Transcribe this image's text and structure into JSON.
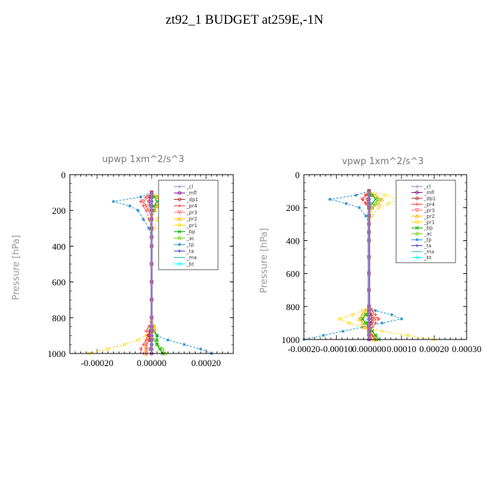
{
  "page_title": "zt92_1  BUDGET at259E,-1N",
  "chart_data": [
    {
      "type": "line",
      "title": "upwp   1xm^2/s^3",
      "xlabel": "",
      "ylabel": "Pressure [hPa]",
      "xlim": [
        -0.0003,
        0.0003
      ],
      "ylim": [
        1000,
        0
      ],
      "xticks": [
        -0.0002,
        0.0,
        0.0002
      ],
      "xtick_labels": [
        "-0.00020",
        "0.00000",
        "0.00020"
      ],
      "yticks": [
        0,
        200,
        400,
        600,
        800,
        1000
      ],
      "ytick_labels": [
        "0",
        "200",
        "400",
        "600",
        "800",
        "1000"
      ],
      "legend_position": "top-right",
      "y": [
        100,
        125,
        150,
        175,
        200,
        250,
        300,
        350,
        400,
        500,
        600,
        700,
        800,
        850,
        875,
        900,
        925,
        950,
        975,
        1000
      ],
      "series": [
        {
          "name": "_cl",
          "color": "#8e7cc3",
          "marker": "+",
          "x": [
            0,
            0,
            0,
            0,
            0,
            0,
            0,
            0,
            0,
            0,
            0,
            0,
            0,
            0,
            0,
            0,
            0,
            0,
            0,
            0
          ]
        },
        {
          "name": "_mfl",
          "color": "#800080",
          "marker": "o",
          "x": [
            0,
            0,
            0,
            0,
            0,
            0,
            0,
            0,
            0,
            0,
            0,
            0,
            0,
            0,
            0,
            0,
            0,
            0,
            0,
            0
          ]
        },
        {
          "name": "_dp1",
          "color": "#b22222",
          "marker": "o",
          "x": [
            0,
            -5e-06,
            -1e-05,
            -5e-06,
            0,
            0,
            0,
            0,
            0,
            0,
            0,
            0,
            0,
            0,
            -5e-06,
            -1e-05,
            -5e-06,
            0,
            -5e-06,
            0
          ]
        },
        {
          "name": "_pr4",
          "color": "#ff3333",
          "marker": "+",
          "x": [
            0,
            -2e-05,
            -4e-05,
            -3e-05,
            -2e-05,
            -1e-05,
            0,
            0,
            0,
            0,
            0,
            0,
            0,
            -1e-05,
            -2e-05,
            -1.5e-05,
            -2e-05,
            -3e-05,
            -4e-05,
            -3e-05
          ]
        },
        {
          "name": "_pr3",
          "color": "#ff6666",
          "marker": "v",
          "x": [
            0,
            -1e-05,
            -3e-05,
            -2e-05,
            -1e-05,
            0,
            0,
            0,
            0,
            0,
            0,
            0,
            0,
            0,
            -1e-05,
            -1e-05,
            -1e-05,
            -2e-05,
            -2e-05,
            -2e-05
          ]
        },
        {
          "name": "_pr2",
          "color": "#ffb300",
          "marker": "^",
          "x": [
            0,
            2e-05,
            3e-05,
            2e-05,
            1e-05,
            0,
            0,
            0,
            0,
            0,
            0,
            0,
            0,
            1e-05,
            1e-05,
            0,
            -1e-05,
            -2e-05,
            -2e-05,
            -2e-05
          ]
        },
        {
          "name": "_pr1",
          "color": "#ffd700",
          "marker": "o",
          "x": [
            0,
            5e-05,
            8e-05,
            6e-05,
            4e-05,
            2e-05,
            1e-05,
            0,
            0,
            0,
            0,
            0,
            0,
            1e-05,
            0,
            -2e-05,
            -5e-05,
            -0.0001,
            -0.00016,
            -0.00023
          ]
        },
        {
          "name": "_bp",
          "color": "#00aa00",
          "marker": "x",
          "x": [
            0,
            1e-05,
            2e-05,
            1e-05,
            1e-05,
            0,
            0,
            0,
            0,
            0,
            0,
            0,
            0,
            0,
            1e-05,
            2e-05,
            2e-05,
            2e-05,
            3e-05,
            4e-05
          ]
        },
        {
          "name": "_ac",
          "color": "#66cc00",
          "marker": "o",
          "x": [
            0,
            2e-05,
            3e-05,
            2e-05,
            1e-05,
            0,
            0,
            0,
            0,
            0,
            0,
            0,
            0,
            0,
            0,
            0,
            1e-05,
            2e-05,
            4e-05,
            5e-05
          ]
        },
        {
          "name": "_tp",
          "color": "#1f8fcf",
          "marker": "*",
          "x": [
            0,
            -4e-05,
            -0.00014,
            -8e-05,
            -5e-05,
            -3e-05,
            -1e-05,
            0,
            0,
            0,
            0,
            0,
            0,
            0,
            5e-06,
            2e-05,
            6e-05,
            0.00012,
            0.00018,
            0.00022
          ]
        },
        {
          "name": "_ta",
          "color": "#3333cc",
          "marker": "+",
          "x": [
            0,
            0,
            0,
            0,
            0,
            0,
            0,
            0,
            0,
            0,
            0,
            0,
            0,
            0,
            0,
            0,
            0,
            0,
            0,
            0
          ]
        },
        {
          "name": "_ma",
          "color": "#20b2aa",
          "marker": "-",
          "x": [
            0,
            0,
            0,
            0,
            0,
            0,
            0,
            0,
            0,
            0,
            0,
            0,
            0,
            0,
            0,
            0,
            0,
            0,
            0,
            0
          ]
        },
        {
          "name": "_bt",
          "color": "#00ffff",
          "marker": "o",
          "x": [
            0,
            0,
            0,
            0,
            0,
            0,
            0,
            0,
            0,
            0,
            0,
            0,
            0,
            0,
            0,
            0,
            0,
            0,
            0,
            0
          ]
        }
      ]
    },
    {
      "type": "line",
      "title": "vpwp   1xm^2/s^3",
      "xlabel": "",
      "ylabel": "Pressure [hPa]",
      "xlim": [
        -0.0002,
        0.0003
      ],
      "ylim": [
        1000,
        0
      ],
      "xticks": [
        -0.0002,
        -0.0001,
        0.0,
        0.0001,
        0.0002,
        0.0003
      ],
      "xtick_labels": [
        "-0.00020",
        "-0.00010",
        "0.000000",
        "0.00010",
        "0.00020",
        "0.00030"
      ],
      "yticks": [
        0,
        200,
        400,
        600,
        800,
        1000
      ],
      "ytick_labels": [
        "0",
        "200",
        "400",
        "600",
        "800",
        "1000"
      ],
      "legend_position": "top-right",
      "y": [
        100,
        125,
        150,
        175,
        200,
        250,
        300,
        350,
        400,
        500,
        600,
        700,
        800,
        825,
        850,
        875,
        900,
        925,
        950,
        975,
        1000
      ],
      "series": [
        {
          "name": "_cl",
          "color": "#8e7cc3",
          "marker": "+",
          "x": [
            0,
            0,
            0,
            0,
            0,
            0,
            0,
            0,
            0,
            0,
            0,
            0,
            0,
            0,
            0,
            0,
            0,
            0,
            0,
            0,
            0
          ]
        },
        {
          "name": "_mfl",
          "color": "#800080",
          "marker": "o",
          "x": [
            0,
            0,
            0,
            0,
            0,
            0,
            0,
            0,
            0,
            0,
            0,
            0,
            0,
            0,
            0,
            0,
            0,
            0,
            0,
            0,
            0
          ]
        },
        {
          "name": "_dp1",
          "color": "#b22222",
          "marker": "o",
          "x": [
            0,
            0,
            -5e-06,
            0,
            0,
            0,
            0,
            0,
            0,
            0,
            0,
            0,
            0,
            0,
            5e-06,
            1e-05,
            5e-06,
            0,
            0,
            0,
            0
          ]
        },
        {
          "name": "_pr4",
          "color": "#ff3333",
          "marker": "+",
          "x": [
            0,
            -1e-05,
            -2e-05,
            -1e-05,
            0,
            0,
            0,
            0,
            0,
            0,
            0,
            0,
            0,
            1e-05,
            2e-05,
            3e-05,
            2e-05,
            1e-05,
            0,
            1e-05,
            2e-05
          ]
        },
        {
          "name": "_pr3",
          "color": "#ff6666",
          "marker": "v",
          "x": [
            0,
            -1e-05,
            -2e-05,
            -1e-05,
            0,
            0,
            0,
            0,
            0,
            0,
            0,
            0,
            0,
            0,
            1e-05,
            2e-05,
            1e-05,
            0,
            0,
            0,
            1e-05
          ]
        },
        {
          "name": "_pr2",
          "color": "#ffb300",
          "marker": "^",
          "x": [
            0,
            2e-05,
            4e-05,
            3e-05,
            1e-05,
            0,
            0,
            0,
            0,
            0,
            0,
            0,
            0,
            -1e-05,
            -2e-05,
            -3e-05,
            -2e-05,
            -1e-05,
            0,
            1e-05,
            2e-05
          ]
        },
        {
          "name": "_pr1",
          "color": "#ffd700",
          "marker": "o",
          "x": [
            0,
            5e-05,
            9e-05,
            6e-05,
            3e-05,
            1e-05,
            0,
            0,
            0,
            0,
            0,
            0,
            0,
            -2e-05,
            -5e-05,
            -9e-05,
            -6e-05,
            -2e-05,
            4e-05,
            0.00012,
            0.0002
          ]
        },
        {
          "name": "_bp",
          "color": "#00aa00",
          "marker": "x",
          "x": [
            0,
            1e-05,
            2e-05,
            1e-05,
            0,
            0,
            0,
            0,
            0,
            0,
            0,
            0,
            0,
            0,
            -1e-05,
            -2e-05,
            -1e-05,
            0,
            1e-05,
            2e-05,
            3e-05
          ]
        },
        {
          "name": "_ac",
          "color": "#66cc00",
          "marker": "o",
          "x": [
            0,
            1e-05,
            3e-05,
            2e-05,
            1e-05,
            0,
            0,
            0,
            0,
            0,
            0,
            0,
            0,
            0,
            -1e-05,
            -2e-05,
            -1e-05,
            0,
            1e-05,
            2e-05,
            2e-05
          ]
        },
        {
          "name": "_tp",
          "color": "#1f8fcf",
          "marker": "*",
          "x": [
            0,
            -4e-05,
            -0.00012,
            -7e-05,
            -3e-05,
            -1e-05,
            0,
            0,
            0,
            0,
            0,
            0,
            0,
            2e-05,
            7e-05,
            0.0001,
            4e-05,
            -2e-05,
            -8e-05,
            -0.00014,
            -0.0002
          ]
        },
        {
          "name": "_ta",
          "color": "#3333cc",
          "marker": "+",
          "x": [
            0,
            0,
            0,
            0,
            0,
            0,
            0,
            0,
            0,
            0,
            0,
            0,
            0,
            0,
            0,
            0,
            0,
            0,
            0,
            0,
            0
          ]
        },
        {
          "name": "_ma",
          "color": "#20b2aa",
          "marker": "-",
          "x": [
            0,
            0,
            0,
            0,
            0,
            0,
            0,
            0,
            0,
            0,
            0,
            0,
            0,
            0,
            0,
            0,
            0,
            0,
            0,
            0,
            0
          ]
        },
        {
          "name": "_bt",
          "color": "#00ffff",
          "marker": "o",
          "x": [
            0,
            0,
            0,
            0,
            0,
            0,
            0,
            0,
            0,
            0,
            0,
            0,
            0,
            0,
            0,
            0,
            0,
            0,
            0,
            0,
            0
          ]
        }
      ]
    }
  ]
}
